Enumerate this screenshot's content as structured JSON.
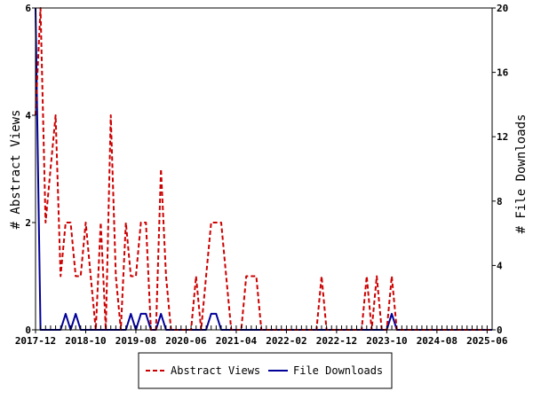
{
  "chart_data": {
    "type": "line",
    "title": "",
    "x_tick_labels": [
      "2017-12",
      "2018-10",
      "2019-08",
      "2020-06",
      "2021-04",
      "2022-02",
      "2022-12",
      "2023-10",
      "2024-08",
      "2025-06"
    ],
    "ylabel_left": "# Abstract Views",
    "ylabel_right": "# File Downloads",
    "ylim_left": [
      0,
      6
    ],
    "ylim_right": [
      0,
      20
    ],
    "yticks_left": [
      0,
      2,
      4,
      6
    ],
    "yticks_right": [
      0,
      4,
      8,
      12,
      16,
      20
    ],
    "x_range": [
      "2017-12",
      "2025-07"
    ],
    "grid": false,
    "legend_position": "bottom-center",
    "series": [
      {
        "name": "Abstract Views",
        "axis": "left",
        "color": "#cc0000",
        "style": "dashed",
        "x": [
          "2017-12",
          "2018-01",
          "2018-02",
          "2018-03",
          "2018-04",
          "2018-05",
          "2018-06",
          "2018-07",
          "2018-08",
          "2018-09",
          "2018-10",
          "2018-11",
          "2018-12",
          "2019-01",
          "2019-02",
          "2019-03",
          "2019-04",
          "2019-05",
          "2019-06",
          "2019-07",
          "2019-08",
          "2019-09",
          "2019-10",
          "2019-11",
          "2019-12",
          "2020-01",
          "2020-02",
          "2020-03",
          "2020-04",
          "2020-05",
          "2020-06",
          "2020-07",
          "2020-08",
          "2020-09",
          "2020-10",
          "2020-11",
          "2020-12",
          "2021-01",
          "2021-02",
          "2021-03",
          "2021-04",
          "2021-05",
          "2021-06",
          "2021-07",
          "2021-08",
          "2021-09",
          "2021-10",
          "2021-11",
          "2021-12",
          "2022-01",
          "2022-02",
          "2022-03",
          "2022-04",
          "2022-05",
          "2022-06",
          "2022-07",
          "2022-08",
          "2022-09",
          "2022-10",
          "2022-11",
          "2022-12",
          "2023-01",
          "2023-02",
          "2023-03",
          "2023-04",
          "2023-05",
          "2023-06",
          "2023-07",
          "2023-08",
          "2023-09",
          "2023-10",
          "2023-11",
          "2023-12",
          "2024-01",
          "2024-02",
          "2024-03",
          "2024-04",
          "2024-05",
          "2024-06",
          "2024-07",
          "2024-08",
          "2024-09",
          "2024-10",
          "2024-11",
          "2024-12",
          "2025-01",
          "2025-02",
          "2025-03",
          "2025-04",
          "2025-05",
          "2025-06",
          "2025-07"
        ],
        "values": [
          4,
          6,
          2,
          3,
          4,
          1,
          2,
          2,
          1,
          1,
          2,
          1,
          0,
          2,
          0,
          4,
          1,
          0,
          2,
          1,
          1,
          2,
          2,
          0,
          0,
          3,
          1,
          0,
          0,
          0,
          0,
          0,
          1,
          0,
          1,
          2,
          2,
          2,
          1,
          0,
          0,
          0,
          1,
          1,
          1,
          0,
          0,
          0,
          0,
          0,
          0,
          0,
          0,
          0,
          0,
          0,
          0,
          1,
          0,
          0,
          0,
          0,
          0,
          0,
          0,
          0,
          1,
          0,
          1,
          0,
          0,
          1,
          0,
          0,
          0,
          0,
          0,
          0,
          0,
          0,
          0,
          0,
          0,
          0,
          0,
          0,
          0,
          0,
          0,
          0,
          0,
          0
        ]
      },
      {
        "name": "File Downloads",
        "axis": "right",
        "color": "#000099",
        "style": "solid",
        "x": [
          "2017-12",
          "2018-01",
          "2018-02",
          "2018-03",
          "2018-04",
          "2018-05",
          "2018-06",
          "2018-07",
          "2018-08",
          "2018-09",
          "2018-10",
          "2018-11",
          "2018-12",
          "2019-01",
          "2019-02",
          "2019-03",
          "2019-04",
          "2019-05",
          "2019-06",
          "2019-07",
          "2019-08",
          "2019-09",
          "2019-10",
          "2019-11",
          "2019-12",
          "2020-01",
          "2020-02",
          "2020-03",
          "2020-04",
          "2020-05",
          "2020-06",
          "2020-07",
          "2020-08",
          "2020-09",
          "2020-10",
          "2020-11",
          "2020-12",
          "2021-01",
          "2021-02",
          "2021-03",
          "2021-04",
          "2021-05",
          "2021-06",
          "2021-07",
          "2021-08",
          "2021-09",
          "2021-10",
          "2021-11",
          "2021-12",
          "2022-01",
          "2022-02",
          "2022-03",
          "2022-04",
          "2022-05",
          "2022-06",
          "2022-07",
          "2022-08",
          "2022-09",
          "2022-10",
          "2022-11",
          "2022-12",
          "2023-01",
          "2023-02",
          "2023-03",
          "2023-04",
          "2023-05",
          "2023-06",
          "2023-07",
          "2023-08",
          "2023-09",
          "2023-10",
          "2023-11",
          "2023-12",
          "2024-01",
          "2024-02",
          "2024-03",
          "2024-04",
          "2024-05",
          "2024-06",
          "2024-07",
          "2024-08",
          "2024-09",
          "2024-10",
          "2024-11",
          "2024-12",
          "2025-01",
          "2025-02",
          "2025-03",
          "2025-04",
          "2025-05",
          "2025-06",
          "2025-07"
        ],
        "values": [
          20,
          0,
          0,
          0,
          0,
          0,
          1,
          0,
          1,
          0,
          0,
          0,
          0,
          0,
          0,
          0,
          0,
          0,
          0,
          1,
          0,
          1,
          1,
          0,
          0,
          1,
          0,
          0,
          0,
          0,
          0,
          0,
          0,
          0,
          0,
          1,
          1,
          0,
          0,
          0,
          0,
          0,
          0,
          0,
          0,
          0,
          0,
          0,
          0,
          0,
          0,
          0,
          0,
          0,
          0,
          0,
          0,
          0,
          0,
          0,
          0,
          0,
          0,
          0,
          0,
          0,
          0,
          0,
          0,
          0,
          0,
          1,
          0,
          0,
          0,
          0,
          0,
          0,
          0,
          0,
          0,
          0,
          0,
          0,
          0,
          0,
          0,
          0,
          0,
          0,
          0,
          0
        ]
      }
    ]
  }
}
